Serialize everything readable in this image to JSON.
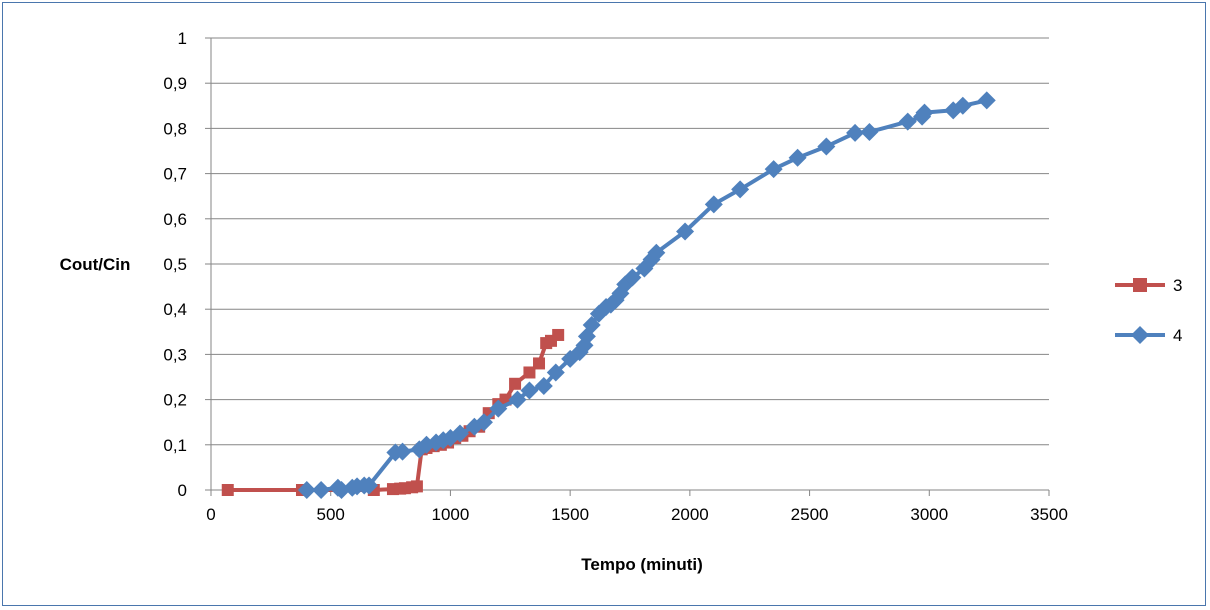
{
  "chart_data": {
    "type": "line",
    "title": "",
    "xlabel": "Tempo (minuti)",
    "ylabel": "Cout/Cin",
    "xlim": [
      0,
      3500
    ],
    "ylim": [
      0,
      1
    ],
    "x_ticks": [
      "0",
      "500",
      "1000",
      "1500",
      "2000",
      "2500",
      "3000",
      "3500"
    ],
    "y_ticks": [
      "0",
      "0,1",
      "0,2",
      "0,3",
      "0,4",
      "0,5",
      "0,6",
      "0,7",
      "0,8",
      "0,9",
      "1"
    ],
    "grid": "horizontal",
    "legend_position": "right",
    "series": [
      {
        "name": "3",
        "color": "#c0504d",
        "marker": "square",
        "points": [
          [
            70,
            0.0
          ],
          [
            380,
            0.0
          ],
          [
            680,
            0.0
          ],
          [
            760,
            0.002
          ],
          [
            790,
            0.003
          ],
          [
            810,
            0.004
          ],
          [
            840,
            0.006
          ],
          [
            860,
            0.008
          ],
          [
            880,
            0.09
          ],
          [
            900,
            0.093
          ],
          [
            930,
            0.097
          ],
          [
            960,
            0.1
          ],
          [
            990,
            0.105
          ],
          [
            1020,
            0.115
          ],
          [
            1050,
            0.12
          ],
          [
            1080,
            0.13
          ],
          [
            1120,
            0.14
          ],
          [
            1160,
            0.17
          ],
          [
            1200,
            0.19
          ],
          [
            1230,
            0.2
          ],
          [
            1270,
            0.235
          ],
          [
            1330,
            0.26
          ],
          [
            1370,
            0.28
          ],
          [
            1400,
            0.325
          ],
          [
            1420,
            0.33
          ],
          [
            1450,
            0.343
          ]
        ]
      },
      {
        "name": "4",
        "color": "#4f81bd",
        "marker": "diamond",
        "points": [
          [
            400,
            0.0
          ],
          [
            460,
            0.0
          ],
          [
            530,
            0.005
          ],
          [
            545,
            0.0
          ],
          [
            590,
            0.005
          ],
          [
            610,
            0.008
          ],
          [
            640,
            0.01
          ],
          [
            660,
            0.01
          ],
          [
            770,
            0.083
          ],
          [
            800,
            0.085
          ],
          [
            870,
            0.09
          ],
          [
            900,
            0.1
          ],
          [
            940,
            0.105
          ],
          [
            970,
            0.11
          ],
          [
            1000,
            0.115
          ],
          [
            1040,
            0.125
          ],
          [
            1100,
            0.14
          ],
          [
            1140,
            0.15
          ],
          [
            1200,
            0.18
          ],
          [
            1280,
            0.2
          ],
          [
            1330,
            0.22
          ],
          [
            1390,
            0.23
          ],
          [
            1440,
            0.26
          ],
          [
            1500,
            0.29
          ],
          [
            1540,
            0.305
          ],
          [
            1560,
            0.32
          ],
          [
            1570,
            0.34
          ],
          [
            1590,
            0.365
          ],
          [
            1620,
            0.39
          ],
          [
            1650,
            0.405
          ],
          [
            1670,
            0.41
          ],
          [
            1690,
            0.42
          ],
          [
            1710,
            0.435
          ],
          [
            1730,
            0.455
          ],
          [
            1760,
            0.47
          ],
          [
            1810,
            0.49
          ],
          [
            1840,
            0.51
          ],
          [
            1860,
            0.525
          ],
          [
            1980,
            0.572
          ],
          [
            2100,
            0.632
          ],
          [
            2210,
            0.665
          ],
          [
            2350,
            0.71
          ],
          [
            2450,
            0.735
          ],
          [
            2570,
            0.76
          ],
          [
            2690,
            0.79
          ],
          [
            2750,
            0.792
          ],
          [
            2910,
            0.815
          ],
          [
            2970,
            0.826
          ],
          [
            2980,
            0.835
          ],
          [
            3100,
            0.84
          ],
          [
            3140,
            0.85
          ],
          [
            3240,
            0.862
          ]
        ]
      }
    ]
  }
}
